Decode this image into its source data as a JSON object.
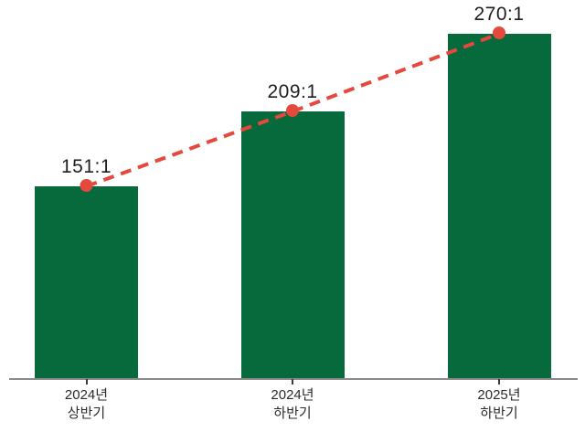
{
  "chart_data": {
    "type": "bar",
    "title": "",
    "categories": [
      "2024년 상반기",
      "2024년 하반기",
      "2025년 하반기"
    ],
    "category_lines": [
      [
        "2024년",
        "상반기"
      ],
      [
        "2024년",
        "하반기"
      ],
      [
        "2025년",
        "하반기"
      ]
    ],
    "values": [
      151,
      209,
      270
    ],
    "value_labels": [
      "151:1",
      "209:1",
      "270:1"
    ],
    "unit_suffix": ":1",
    "ylim": [
      0,
      295
    ],
    "grid": false,
    "legend": false,
    "colors": {
      "bar": "#066a3c",
      "trend_line": "#e5483d",
      "marker": "#e5483d",
      "axis": "#8a8a8a",
      "tick": "#3a3a3a",
      "value_text": "#1e1e1e",
      "category_text": "#2b2b2b"
    },
    "trend_line": {
      "type": "line",
      "style": "dashed",
      "markers": true,
      "values": [
        151,
        209,
        270
      ]
    }
  }
}
